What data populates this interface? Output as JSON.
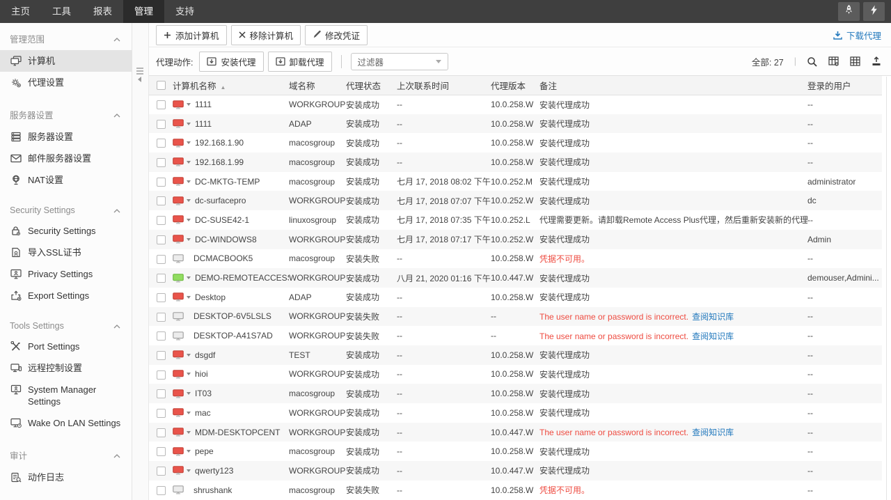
{
  "nav": {
    "items": [
      {
        "label": "主页",
        "active": false
      },
      {
        "label": "工具",
        "active": false
      },
      {
        "label": "报表",
        "active": false
      },
      {
        "label": "管理",
        "active": true
      },
      {
        "label": "支持",
        "active": false
      }
    ],
    "action_icons": [
      "rocket-icon",
      "lightning-icon"
    ]
  },
  "sidebar": {
    "sections": [
      {
        "header": "管理范围",
        "items": [
          {
            "icon": "computers-icon",
            "label": "计算机",
            "selected": true
          },
          {
            "icon": "agent-gear-icon",
            "label": "代理设置",
            "selected": false
          }
        ]
      },
      {
        "header": "服务器设置",
        "items": [
          {
            "icon": "server-icon",
            "label": "服务器设置",
            "selected": false
          },
          {
            "icon": "mail-icon",
            "label": "邮件服务器设置",
            "selected": false
          },
          {
            "icon": "nat-icon",
            "label": "NAT设置",
            "selected": false
          }
        ]
      },
      {
        "header": "Security Settings",
        "items": [
          {
            "icon": "security-lock-icon",
            "label": "Security Settings",
            "selected": false
          },
          {
            "icon": "ssl-cert-icon",
            "label": "导入SSL证书",
            "selected": false
          },
          {
            "icon": "privacy-monitor-icon",
            "label": "Privacy Settings",
            "selected": false
          },
          {
            "icon": "export-settings-icon",
            "label": "Export Settings",
            "selected": false
          }
        ]
      },
      {
        "header": "Tools Settings",
        "items": [
          {
            "icon": "port-tools-icon",
            "label": "Port Settings",
            "selected": false
          },
          {
            "icon": "remote-control-icon",
            "label": "远程控制设置",
            "selected": false
          },
          {
            "icon": "system-manager-icon",
            "label": "System Manager Settings",
            "selected": false
          },
          {
            "icon": "wol-icon",
            "label": "Wake On LAN Settings",
            "selected": false
          }
        ]
      },
      {
        "header": "审计",
        "items": [
          {
            "icon": "action-log-icon",
            "label": "动作日志",
            "selected": false
          }
        ]
      }
    ]
  },
  "toolbar": {
    "buttons": [
      {
        "icon": "plus-icon",
        "label": "添加计算机"
      },
      {
        "icon": "x-icon",
        "label": "移除计算机"
      },
      {
        "icon": "pencil-icon",
        "label": "修改凭证"
      }
    ],
    "download_agent": "下载代理",
    "agent_action_label": "代理动作:",
    "agent_buttons": [
      {
        "icon": "install-icon",
        "label": "安装代理"
      },
      {
        "icon": "install-icon",
        "label": "卸载代理"
      }
    ],
    "filter_value": "过滤器",
    "total_label": "全部: 27",
    "view_icons": [
      "search-icon",
      "column-add-icon",
      "grid-icon",
      "export-icon"
    ]
  },
  "table": {
    "headers": [
      "计算机名称",
      "域名称",
      "代理状态",
      "上次联系时间",
      "代理版本",
      "备注",
      "登录的用户"
    ],
    "sorted_by": "计算机名称",
    "rows": [
      {
        "name": "1111",
        "monitor": "red",
        "caret": true,
        "domain": "WORKGROUP",
        "status": "安装成功",
        "last_contact": "--",
        "version": "10.0.258.W",
        "remark": "安装代理成功",
        "remark_style": "normal",
        "remark_link": "",
        "user": "--"
      },
      {
        "name": "1111",
        "monitor": "red",
        "caret": true,
        "domain": "ADAP",
        "status": "安装成功",
        "last_contact": "--",
        "version": "10.0.258.W",
        "remark": "安装代理成功",
        "remark_style": "normal",
        "remark_link": "",
        "user": "--"
      },
      {
        "name": "192.168.1.90",
        "monitor": "red",
        "caret": true,
        "domain": "macosgroup",
        "status": "安装成功",
        "last_contact": "--",
        "version": "10.0.258.W",
        "remark": "安装代理成功",
        "remark_style": "normal",
        "remark_link": "",
        "user": "--"
      },
      {
        "name": "192.168.1.99",
        "monitor": "red",
        "caret": true,
        "domain": "macosgroup",
        "status": "安装成功",
        "last_contact": "--",
        "version": "10.0.258.W",
        "remark": "安装代理成功",
        "remark_style": "normal",
        "remark_link": "",
        "user": "--"
      },
      {
        "name": "DC-MKTG-TEMP",
        "monitor": "red",
        "caret": true,
        "domain": "macosgroup",
        "status": "安装成功",
        "last_contact": "七月 17, 2018 08:02 下午",
        "version": "10.0.252.M",
        "remark": "安装代理成功",
        "remark_style": "normal",
        "remark_link": "",
        "user": "administrator"
      },
      {
        "name": "dc-surfacepro",
        "monitor": "red",
        "caret": true,
        "domain": "WORKGROUP",
        "status": "安装成功",
        "last_contact": "七月 17, 2018 07:07 下午",
        "version": "10.0.252.W",
        "remark": "安装代理成功",
        "remark_style": "normal",
        "remark_link": "",
        "user": "dc"
      },
      {
        "name": "DC-SUSE42-1",
        "monitor": "red",
        "caret": true,
        "domain": "linuxosgroup",
        "status": "安装成功",
        "last_contact": "七月 17, 2018 07:35 下午",
        "version": "10.0.252.L",
        "remark": "代理需要更新。请卸载Remote Access Plus代理，然后重新安装新的代理。",
        "remark_style": "normal",
        "remark_link": "",
        "user": "--"
      },
      {
        "name": "DC-WINDOWS8",
        "monitor": "red",
        "caret": true,
        "domain": "WORKGROUP",
        "status": "安装成功",
        "last_contact": "七月 17, 2018 07:17 下午",
        "version": "10.0.252.W",
        "remark": "安装代理成功",
        "remark_style": "normal",
        "remark_link": "",
        "user": "Admin"
      },
      {
        "name": "DCMACBOOK5",
        "monitor": "gray",
        "caret": false,
        "domain": "macosgroup",
        "status": "安装失败",
        "last_contact": "--",
        "version": "10.0.258.W",
        "remark": "凭据不可用。",
        "remark_style": "error",
        "remark_link": "",
        "user": "--"
      },
      {
        "name": "DEMO-REMOTEACCESS",
        "monitor": "green",
        "caret": true,
        "domain": "WORKGROUP",
        "status": "安装成功",
        "last_contact": "八月 21, 2020 01:16 下午",
        "version": "10.0.447.W",
        "remark": "安装代理成功",
        "remark_style": "normal",
        "remark_link": "",
        "user": "demouser,Admini..."
      },
      {
        "name": "Desktop",
        "monitor": "red",
        "caret": true,
        "domain": "ADAP",
        "status": "安装成功",
        "last_contact": "--",
        "version": "10.0.258.W",
        "remark": "安装代理成功",
        "remark_style": "normal",
        "remark_link": "",
        "user": "--"
      },
      {
        "name": "DESKTOP-6V5LSLS",
        "monitor": "gray",
        "caret": false,
        "domain": "WORKGROUP",
        "status": "安装失败",
        "last_contact": "--",
        "version": "--",
        "remark": "The user name or password is incorrect.",
        "remark_style": "error",
        "remark_link": "查阅知识库",
        "user": "--"
      },
      {
        "name": "DESKTOP-A41S7AD",
        "monitor": "gray",
        "caret": false,
        "domain": "WORKGROUP",
        "status": "安装失败",
        "last_contact": "--",
        "version": "--",
        "remark": "The user name or password is incorrect.",
        "remark_style": "error",
        "remark_link": "查阅知识库",
        "user": "--"
      },
      {
        "name": "dsgdf",
        "monitor": "red",
        "caret": true,
        "domain": "TEST",
        "status": "安装成功",
        "last_contact": "--",
        "version": "10.0.258.W",
        "remark": "安装代理成功",
        "remark_style": "normal",
        "remark_link": "",
        "user": "--"
      },
      {
        "name": "hioi",
        "monitor": "red",
        "caret": true,
        "domain": "WORKGROUP",
        "status": "安装成功",
        "last_contact": "--",
        "version": "10.0.258.W",
        "remark": "安装代理成功",
        "remark_style": "normal",
        "remark_link": "",
        "user": "--"
      },
      {
        "name": "IT03",
        "monitor": "red",
        "caret": true,
        "domain": "macosgroup",
        "status": "安装成功",
        "last_contact": "--",
        "version": "10.0.258.W",
        "remark": "安装代理成功",
        "remark_style": "normal",
        "remark_link": "",
        "user": "--"
      },
      {
        "name": "mac",
        "monitor": "red",
        "caret": true,
        "domain": "WORKGROUP",
        "status": "安装成功",
        "last_contact": "--",
        "version": "10.0.258.W",
        "remark": "安装代理成功",
        "remark_style": "normal",
        "remark_link": "",
        "user": "--"
      },
      {
        "name": "MDM-DESKTOPCENT",
        "monitor": "red",
        "caret": true,
        "domain": "WORKGROUP",
        "status": "安装成功",
        "last_contact": "--",
        "version": "10.0.447.W",
        "remark": "The user name or password is incorrect.",
        "remark_style": "error",
        "remark_link": "查阅知识库",
        "user": "--"
      },
      {
        "name": "pepe",
        "monitor": "red",
        "caret": true,
        "domain": "macosgroup",
        "status": "安装成功",
        "last_contact": "--",
        "version": "10.0.258.W",
        "remark": "安装代理成功",
        "remark_style": "normal",
        "remark_link": "",
        "user": "--"
      },
      {
        "name": "qwerty123",
        "monitor": "red",
        "caret": true,
        "domain": "WORKGROUP",
        "status": "安装成功",
        "last_contact": "--",
        "version": "10.0.447.W",
        "remark": "安装代理成功",
        "remark_style": "normal",
        "remark_link": "",
        "user": "--"
      },
      {
        "name": "shrushank",
        "monitor": "gray",
        "caret": false,
        "domain": "macosgroup",
        "status": "安装失败",
        "last_contact": "--",
        "version": "10.0.258.W",
        "remark": "凭据不可用。",
        "remark_style": "error",
        "remark_link": "",
        "user": "--"
      }
    ]
  },
  "colors": {
    "link_blue": "#2379bd",
    "error_red": "#ee4b40",
    "monitor_red": "#e9544b",
    "monitor_green": "#92dd61",
    "monitor_gray": "#ececec",
    "nav_bg": "#3f3f3f",
    "nav_active_bg": "#2b2b2b"
  }
}
